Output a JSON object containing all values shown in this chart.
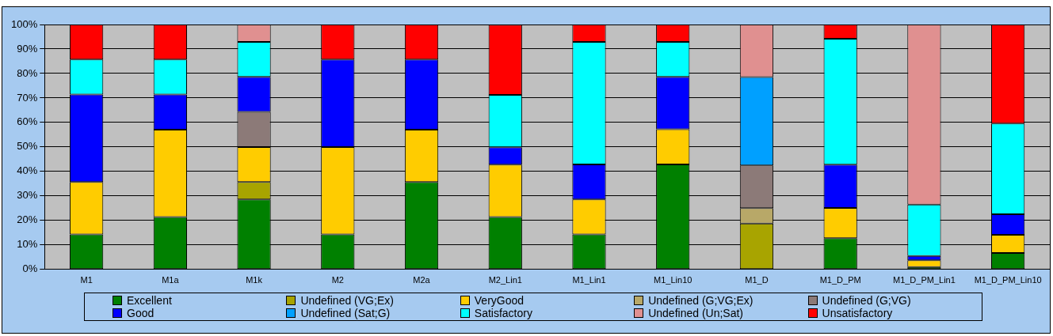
{
  "chart_data": {
    "type": "bar",
    "stacked": true,
    "legend": "bottom",
    "grid": "y",
    "categories": [
      "M1",
      "M1a",
      "M1k",
      "M2",
      "M2a",
      "M2_Lin1",
      "M1_Lin1",
      "M1_Lin10",
      "M1_D",
      "M1_D_PM",
      "M1_D_PM_Lin1",
      "M1_D_PM_Lin10"
    ],
    "ylim": [
      0,
      100
    ],
    "yticks": [
      {
        "value": 0,
        "label": "0%"
      },
      {
        "value": 10,
        "label": "10%"
      },
      {
        "value": 20,
        "label": "20%"
      },
      {
        "value": 30,
        "label": "30%"
      },
      {
        "value": 40,
        "label": "40%"
      },
      {
        "value": 50,
        "label": "50%"
      },
      {
        "value": 60,
        "label": "60%"
      },
      {
        "value": 70,
        "label": "70%"
      },
      {
        "value": 80,
        "label": "80%"
      },
      {
        "value": 90,
        "label": "90%"
      },
      {
        "value": 100,
        "label": "100%"
      }
    ],
    "series": [
      {
        "name": "Excellent",
        "color": "#008000",
        "values": [
          14.3,
          21.4,
          28.6,
          14.3,
          35.7,
          21.4,
          14.3,
          42.9,
          0,
          12.8,
          1,
          6.7
        ]
      },
      {
        "name": "Undefined (VG;Ex)",
        "color": "#a8a400",
        "values": [
          0,
          0,
          7.1,
          0,
          0,
          0,
          0,
          0,
          18.7,
          0,
          0,
          0
        ]
      },
      {
        "name": "VeryGood",
        "color": "#ffcc00",
        "values": [
          21.4,
          35.7,
          14.3,
          35.7,
          21.4,
          21.4,
          14.3,
          14.3,
          0,
          12.3,
          2.7,
          7.4
        ]
      },
      {
        "name": "Undefined (G;VG;Ex)",
        "color": "#b8a868",
        "values": [
          0,
          0,
          0,
          0,
          0,
          0,
          0,
          0,
          6.3,
          0,
          0,
          0
        ]
      },
      {
        "name": "Undefined (G;VG)",
        "color": "#8c7a78",
        "values": [
          0,
          0,
          14.3,
          0,
          0,
          0,
          0,
          0,
          17.5,
          0,
          0,
          0
        ]
      },
      {
        "name": "Good",
        "color": "#0000ff",
        "values": [
          35.7,
          14.3,
          14.3,
          35.7,
          28.6,
          7.1,
          14.3,
          21.4,
          0,
          17.7,
          1.8,
          8.4
        ]
      },
      {
        "name": "Undefined (Sat;G)",
        "color": "#00a0ff",
        "values": [
          0,
          0,
          0,
          0,
          0,
          0,
          0,
          0,
          36,
          0,
          0,
          0
        ]
      },
      {
        "name": "Satisfactory",
        "color": "#00ffff",
        "values": [
          14.3,
          14.3,
          14.3,
          0,
          0,
          21.4,
          50,
          14.3,
          0,
          51.4,
          21,
          37.1
        ]
      },
      {
        "name": "Undefined (Un;Sat)",
        "color": "#e09090",
        "values": [
          0,
          0,
          7.1,
          0,
          0,
          0,
          0,
          0,
          21.5,
          0,
          73.5,
          0
        ]
      },
      {
        "name": "Unsatisfactory",
        "color": "#ff0000",
        "values": [
          14.3,
          14.3,
          0,
          14.3,
          14.3,
          28.6,
          7.1,
          7.1,
          0,
          5.8,
          0,
          40.4
        ]
      }
    ]
  }
}
